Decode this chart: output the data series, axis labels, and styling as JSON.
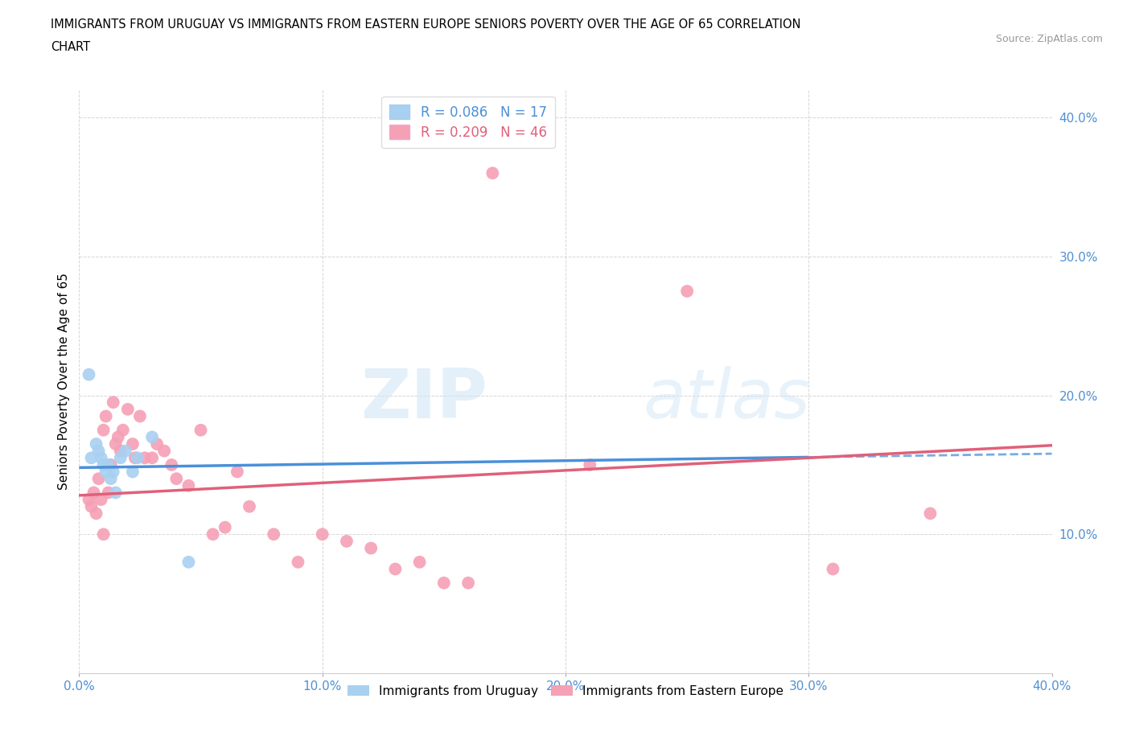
{
  "title_line1": "IMMIGRANTS FROM URUGUAY VS IMMIGRANTS FROM EASTERN EUROPE SENIORS POVERTY OVER THE AGE OF 65 CORRELATION",
  "title_line2": "CHART",
  "source_text": "Source: ZipAtlas.com",
  "ylabel": "Seniors Poverty Over the Age of 65",
  "xlim": [
    0.0,
    0.4
  ],
  "ylim": [
    0.0,
    0.42
  ],
  "xticks": [
    0.0,
    0.1,
    0.2,
    0.3,
    0.4
  ],
  "yticks": [
    0.1,
    0.2,
    0.3,
    0.4
  ],
  "ytick_labels": [
    "10.0%",
    "20.0%",
    "30.0%",
    "40.0%"
  ],
  "xtick_labels": [
    "0.0%",
    "10.0%",
    "20.0%",
    "30.0%",
    "40.0%"
  ],
  "r_uruguay": 0.086,
  "n_uruguay": 17,
  "r_eastern": 0.209,
  "n_eastern": 46,
  "color_uruguay": "#a8d0f0",
  "color_eastern": "#f5a0b5",
  "trendline_uruguay_color": "#4a90d9",
  "trendline_eastern_color": "#e0607a",
  "watermark_zip": "ZIP",
  "watermark_atlas": "atlas",
  "legend_label_uruguay": "Immigrants from Uruguay",
  "legend_label_eastern": "Immigrants from Eastern Europe",
  "uruguay_x": [
    0.004,
    0.005,
    0.007,
    0.008,
    0.009,
    0.01,
    0.011,
    0.012,
    0.013,
    0.014,
    0.015,
    0.017,
    0.019,
    0.022,
    0.024,
    0.03,
    0.045
  ],
  "uruguay_y": [
    0.215,
    0.155,
    0.165,
    0.16,
    0.155,
    0.15,
    0.145,
    0.15,
    0.14,
    0.145,
    0.13,
    0.155,
    0.16,
    0.145,
    0.155,
    0.17,
    0.08
  ],
  "eastern_x": [
    0.004,
    0.005,
    0.006,
    0.007,
    0.008,
    0.009,
    0.01,
    0.01,
    0.011,
    0.012,
    0.013,
    0.014,
    0.015,
    0.016,
    0.017,
    0.018,
    0.02,
    0.022,
    0.023,
    0.025,
    0.027,
    0.03,
    0.032,
    0.035,
    0.038,
    0.04,
    0.045,
    0.05,
    0.055,
    0.06,
    0.065,
    0.07,
    0.08,
    0.09,
    0.1,
    0.11,
    0.12,
    0.13,
    0.14,
    0.15,
    0.16,
    0.17,
    0.21,
    0.25,
    0.31,
    0.35
  ],
  "eastern_y": [
    0.125,
    0.12,
    0.13,
    0.115,
    0.14,
    0.125,
    0.1,
    0.175,
    0.185,
    0.13,
    0.15,
    0.195,
    0.165,
    0.17,
    0.16,
    0.175,
    0.19,
    0.165,
    0.155,
    0.185,
    0.155,
    0.155,
    0.165,
    0.16,
    0.15,
    0.14,
    0.135,
    0.175,
    0.1,
    0.105,
    0.145,
    0.12,
    0.1,
    0.08,
    0.1,
    0.095,
    0.09,
    0.075,
    0.08,
    0.065,
    0.065,
    0.36,
    0.15,
    0.275,
    0.075,
    0.115
  ]
}
